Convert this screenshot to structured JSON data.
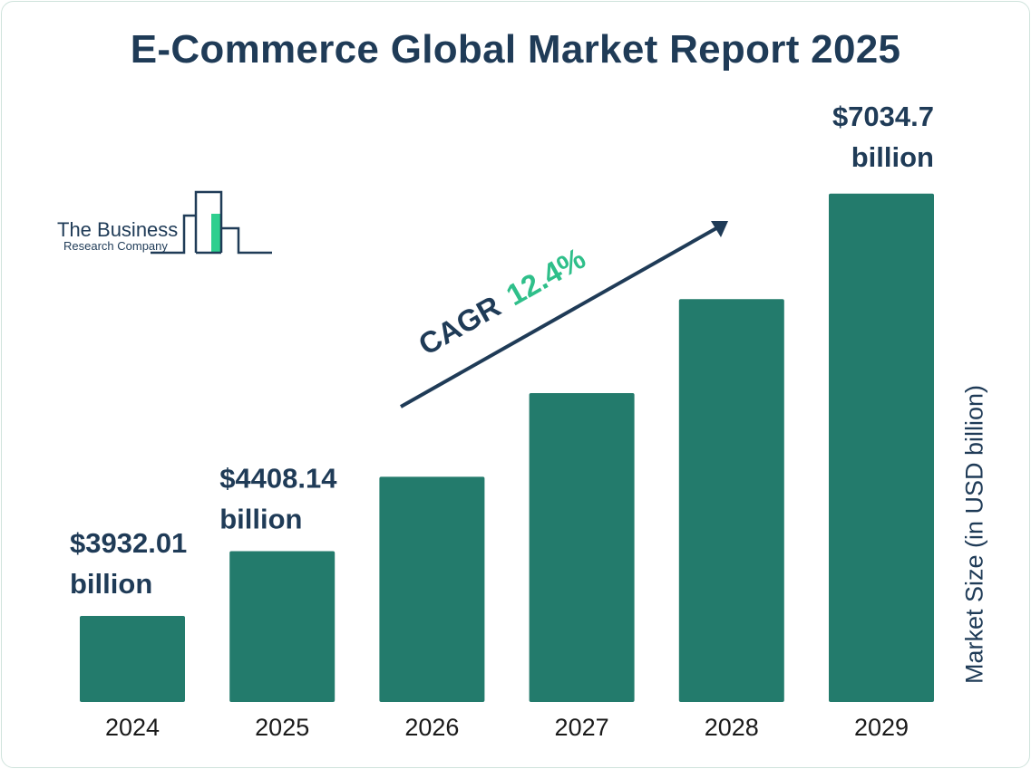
{
  "chart_data": {
    "type": "bar",
    "title": "E-Commerce Global Market Report 2025",
    "categories": [
      "2024",
      "2025",
      "2026",
      "2027",
      "2028",
      "2029"
    ],
    "values": [
      3932.01,
      4408.14,
      4955,
      5569,
      6260,
      7034.7
    ],
    "data_labels": [
      {
        "category": "2024",
        "line1": "$3932.01",
        "line2": "billion"
      },
      {
        "category": "2025",
        "line1": "$4408.14",
        "line2": "billion"
      },
      {
        "category": "2029",
        "line1": "$7034.7",
        "line2": "billion"
      }
    ],
    "xlabel": "",
    "ylabel": "Market Size (in USD billion)",
    "ylim": [
      3300,
      7100
    ],
    "grid": false,
    "annotation": {
      "prefix": "CAGR",
      "value": "12.4%"
    },
    "colors": {
      "bar": "#237b6c",
      "text": "#1f3b57",
      "cagr": "#2fbf8a"
    }
  },
  "logo": {
    "line1": "The Business",
    "line2": "Research Company"
  }
}
